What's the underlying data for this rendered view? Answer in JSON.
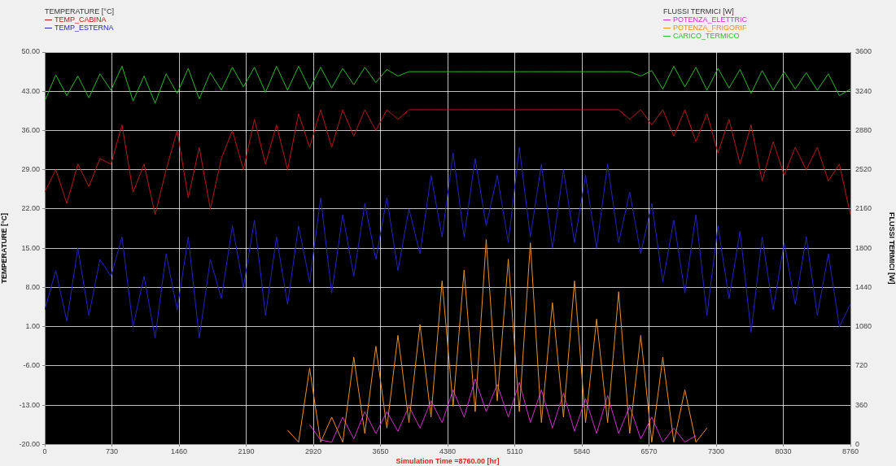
{
  "chart_data": {
    "type": "line",
    "xlabel": "Simulation Time =8760.00 [hr]",
    "ylabel": "TEMPERATURE [°C]",
    "y2label": "FLUSSI TERMICI [W]",
    "x": [
      0,
      120,
      240,
      360,
      480,
      600,
      720,
      840,
      960,
      1080,
      1200,
      1320,
      1440,
      1560,
      1680,
      1800,
      1920,
      2040,
      2160,
      2280,
      2400,
      2520,
      2640,
      2760,
      2880,
      3000,
      3120,
      3240,
      3360,
      3480,
      3600,
      3720,
      3840,
      3960,
      4080,
      4200,
      4320,
      4440,
      4560,
      4680,
      4800,
      4920,
      5040,
      5160,
      5280,
      5400,
      5520,
      5640,
      5760,
      5880,
      6000,
      6120,
      6240,
      6360,
      6480,
      6600,
      6720,
      6840,
      6960,
      7080,
      7200,
      7320,
      7440,
      7560,
      7680,
      7800,
      7920,
      8040,
      8160,
      8280,
      8400,
      8520,
      8640,
      8760
    ],
    "series": [
      {
        "name": "TEMP_CABINA",
        "color": "#b51a1a",
        "values": [
          25,
          29,
          23,
          30,
          26,
          31,
          30,
          37,
          25,
          30,
          21,
          29,
          36,
          24,
          33,
          22,
          31,
          36,
          29,
          38,
          30,
          37,
          29,
          39,
          33,
          39.7,
          33,
          39.7,
          35,
          39.7,
          36,
          39.7,
          38,
          39.7,
          39.7,
          39.7,
          39.7,
          39.7,
          39.7,
          39.7,
          39.7,
          39.7,
          39.7,
          39.7,
          39.7,
          39.7,
          39.7,
          39.7,
          39.7,
          39.7,
          39.7,
          39.7,
          39.7,
          38,
          39.7,
          37,
          39.7,
          35,
          39.7,
          34,
          39,
          32,
          38,
          30,
          37,
          27,
          34,
          28,
          33,
          29,
          33,
          27,
          30,
          21
        ]
      },
      {
        "name": "TEMP_ESTERNA",
        "color": "#2424c0",
        "values": [
          4,
          11,
          2,
          15,
          3,
          13,
          10,
          17,
          1,
          10,
          -1,
          14,
          4,
          17,
          -1,
          13,
          6,
          19,
          8,
          20,
          3,
          17,
          5,
          19,
          9,
          24,
          7,
          21,
          10,
          23,
          13,
          24,
          11,
          22,
          14,
          28,
          17,
          32,
          17,
          31,
          19,
          28,
          16,
          33,
          17,
          30,
          15,
          29,
          16,
          28,
          15,
          30,
          16,
          25,
          14,
          23,
          9,
          20,
          7,
          21,
          3,
          19,
          6,
          18,
          0,
          17,
          4,
          16,
          5,
          17,
          3,
          14,
          1,
          5
        ]
      },
      {
        "name": "POTENZA_ELETTRIC",
        "color": "#d030c8",
        "axis": "y2",
        "values": [
          null,
          null,
          null,
          null,
          null,
          null,
          null,
          null,
          null,
          null,
          null,
          null,
          null,
          null,
          null,
          null,
          null,
          null,
          null,
          null,
          null,
          null,
          null,
          null,
          180,
          40,
          20,
          250,
          50,
          300,
          100,
          300,
          120,
          350,
          150,
          400,
          200,
          500,
          250,
          600,
          300,
          550,
          250,
          570,
          200,
          500,
          150,
          470,
          120,
          420,
          100,
          450,
          100,
          350,
          50,
          250,
          20,
          150,
          20,
          80,
          null,
          null,
          null,
          null,
          null,
          null,
          null,
          null,
          null,
          null,
          null,
          null,
          null,
          null
        ]
      },
      {
        "name": "POTENZA_FRIGORIF",
        "color": "#e8922a",
        "axis": "y2",
        "values": [
          null,
          null,
          null,
          null,
          null,
          null,
          null,
          null,
          null,
          null,
          null,
          null,
          null,
          null,
          null,
          null,
          null,
          null,
          null,
          null,
          null,
          null,
          130,
          20,
          700,
          20,
          250,
          20,
          800,
          100,
          900,
          150,
          1000,
          200,
          1100,
          250,
          1500,
          350,
          1600,
          300,
          1880,
          400,
          1700,
          300,
          1850,
          200,
          1300,
          250,
          1500,
          200,
          1150,
          200,
          1400,
          100,
          1000,
          20,
          800,
          20,
          500,
          20,
          150,
          null,
          null,
          null,
          null,
          null,
          null,
          null,
          null,
          null,
          null,
          null,
          null,
          null
        ]
      },
      {
        "name": "CARICO_TERMICO",
        "color": "#2cb82c",
        "axis": "y2",
        "values": [
          3150,
          3390,
          3200,
          3380,
          3180,
          3400,
          3250,
          3470,
          3150,
          3380,
          3130,
          3400,
          3220,
          3450,
          3170,
          3410,
          3250,
          3460,
          3280,
          3460,
          3230,
          3470,
          3250,
          3470,
          3260,
          3460,
          3270,
          3450,
          3300,
          3460,
          3320,
          3440,
          3380,
          3420,
          3420,
          3420,
          3420,
          3420,
          3420,
          3420,
          3420,
          3420,
          3420,
          3420,
          3420,
          3420,
          3420,
          3420,
          3420,
          3420,
          3420,
          3420,
          3420,
          3420,
          3380,
          3430,
          3260,
          3470,
          3280,
          3460,
          3250,
          3450,
          3270,
          3440,
          3220,
          3430,
          3250,
          3420,
          3260,
          3410,
          3250,
          3400,
          3200,
          3260
        ]
      }
    ],
    "xlim": [
      0,
      8760
    ],
    "xticks": [
      0,
      730,
      1460,
      2190,
      2920,
      3650,
      4380,
      5110,
      5840,
      6570,
      7300,
      8030,
      8760
    ],
    "ylim": [
      -20,
      50
    ],
    "yticks": [
      {
        "value": -20,
        "label": "-20.00"
      },
      {
        "value": -13,
        "label": "-13.00"
      },
      {
        "value": -6,
        "label": "-6.00"
      },
      {
        "value": 1,
        "label": "1.00"
      },
      {
        "value": 8,
        "label": "8.00"
      },
      {
        "value": 15,
        "label": "15.00"
      },
      {
        "value": 22,
        "label": "22.00"
      },
      {
        "value": 29,
        "label": "29.00"
      },
      {
        "value": 36,
        "label": "36.00"
      },
      {
        "value": 43,
        "label": "43.00"
      },
      {
        "value": 50,
        "label": "50.00"
      }
    ],
    "y2lim": [
      0,
      3600
    ],
    "y2ticks": [
      0,
      360,
      720,
      1080,
      1440,
      1800,
      2160,
      2520,
      2880,
      3240,
      3600
    ],
    "grid": true,
    "legend": "top",
    "marker": "none",
    "line_style": "solid"
  }
}
